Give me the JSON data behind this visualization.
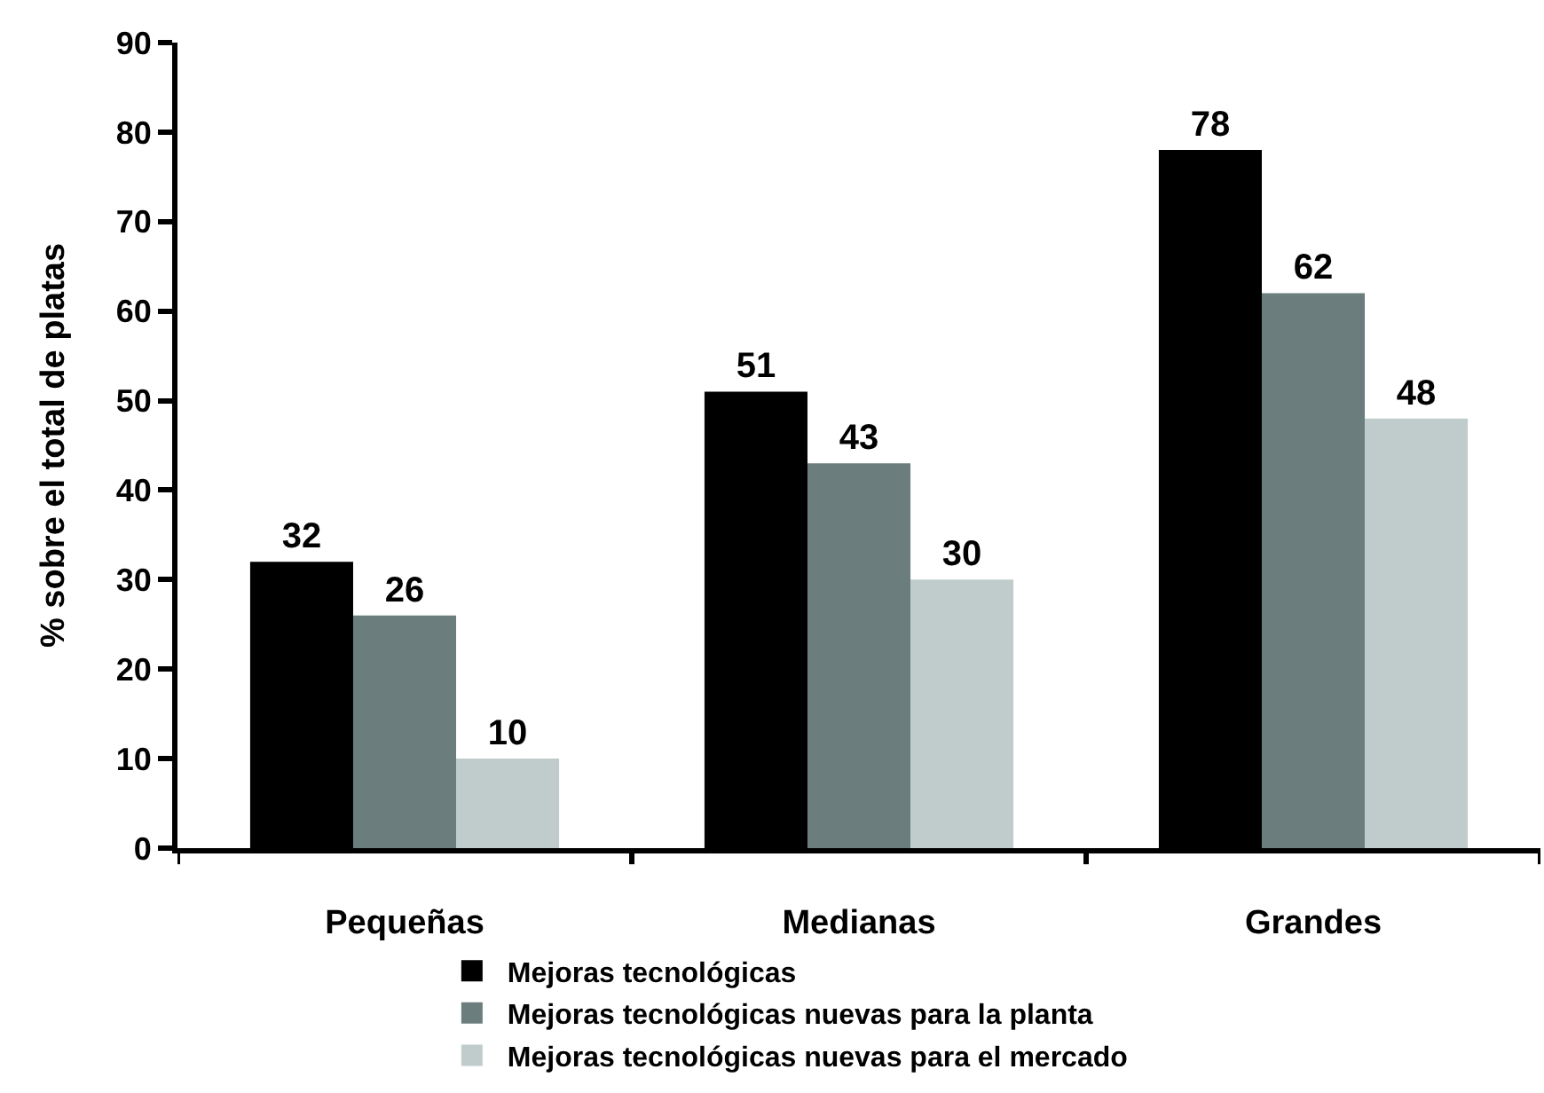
{
  "chart_data": {
    "type": "bar",
    "ylabel": "% sobre el total de platas",
    "categories": [
      "Pequeñas",
      "Medianas",
      "Grandes"
    ],
    "series": [
      {
        "name": "Mejoras tecnológicas",
        "color": "#000000",
        "values": [
          32,
          51,
          78
        ]
      },
      {
        "name": "Mejoras tecnológicas nuevas para la planta",
        "color": "#6b7d7d",
        "values": [
          26,
          43,
          62
        ]
      },
      {
        "name": "Mejoras tecnológicas nuevas para el mercado",
        "color": "#c0cccc",
        "values": [
          10,
          30,
          48
        ]
      }
    ],
    "ylim": [
      0,
      90
    ],
    "yticks": [
      0,
      10,
      20,
      30,
      40,
      50,
      60,
      70,
      80,
      90
    ],
    "data_labels": true,
    "legend": "bottom"
  }
}
